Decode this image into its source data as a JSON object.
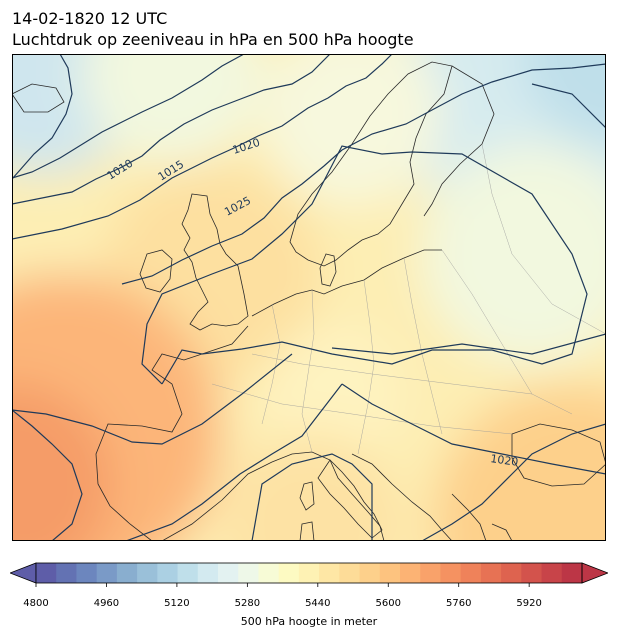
{
  "title": {
    "line1": "14-02-1820 12 UTC",
    "line2": "Luchtdruk op zeeniveau in hPa en 500 hPa hoogte"
  },
  "map": {
    "region": "Europe",
    "projection": "Lambert conformal",
    "fill_field": "500 hPa geopotential height",
    "contour_field": "mean sea level pressure",
    "contour_color": "#1f3a5a",
    "isobar_labels": [
      "1010",
      "1015",
      "1020",
      "1025",
      "1020"
    ]
  },
  "colorbar": {
    "label": "500 hPa hoogte in meter",
    "min": 4800,
    "max": 6040,
    "step": 40,
    "extend": "both",
    "ticks": [
      "4800",
      "4960",
      "5120",
      "5280",
      "5440",
      "5600",
      "5760",
      "5920"
    ],
    "colors": [
      "#5e5da8",
      "#6372b3",
      "#6c86be",
      "#7a9ac7",
      "#89aecf",
      "#9ac0d9",
      "#abd0e3",
      "#bfdfea",
      "#d3eaf0",
      "#e3f2f1",
      "#eef8e8",
      "#f7fbd6",
      "#fdfac2",
      "#fef2b4",
      "#fee7a5",
      "#fddc98",
      "#fdd08b",
      "#fdc37f",
      "#fcb374",
      "#f9a26a",
      "#f59261",
      "#ef825a",
      "#e77254",
      "#de634f",
      "#d3534c",
      "#c84449",
      "#bc3646"
    ]
  }
}
